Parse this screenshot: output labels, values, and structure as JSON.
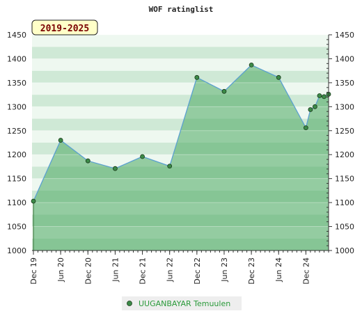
{
  "chart_data": {
    "type": "area",
    "title": "WOF ratinglist",
    "period_badge": "2019-2025",
    "ylim": [
      1000,
      1450
    ],
    "y_ticks": [
      1000,
      1050,
      1100,
      1150,
      1200,
      1250,
      1300,
      1350,
      1400,
      1450
    ],
    "x_range": [
      "2019-12",
      "2025-05"
    ],
    "x_ticks": [
      {
        "date": "2019-12",
        "label": "Dec 19"
      },
      {
        "date": "2020-06",
        "label": "Jun 20"
      },
      {
        "date": "2020-12",
        "label": "Dec 20"
      },
      {
        "date": "2021-06",
        "label": "Jun 21"
      },
      {
        "date": "2021-12",
        "label": "Dec 21"
      },
      {
        "date": "2022-06",
        "label": "Jun 22"
      },
      {
        "date": "2022-12",
        "label": "Dec 22"
      },
      {
        "date": "2023-06",
        "label": "Jun 23"
      },
      {
        "date": "2023-12",
        "label": "Dec 23"
      },
      {
        "date": "2024-06",
        "label": "Jun 24"
      },
      {
        "date": "2024-12",
        "label": "Dec 24"
      }
    ],
    "series": [
      {
        "name": "UUGANBAYAR Temuulen",
        "color": "#4a9a4a",
        "points": [
          {
            "x": "2019-12",
            "y": 1103
          },
          {
            "x": "2020-06",
            "y": 1230
          },
          {
            "x": "2020-12",
            "y": 1187
          },
          {
            "x": "2021-06",
            "y": 1171
          },
          {
            "x": "2021-12",
            "y": 1196
          },
          {
            "x": "2022-06",
            "y": 1176
          },
          {
            "x": "2022-12",
            "y": 1361
          },
          {
            "x": "2023-06",
            "y": 1332
          },
          {
            "x": "2023-12",
            "y": 1387
          },
          {
            "x": "2024-06",
            "y": 1361
          },
          {
            "x": "2024-12",
            "y": 1256
          },
          {
            "x": "2025-01",
            "y": 1294
          },
          {
            "x": "2025-02",
            "y": 1300
          },
          {
            "x": "2025-03",
            "y": 1323
          },
          {
            "x": "2025-04",
            "y": 1321
          },
          {
            "x": "2025-05",
            "y": 1326
          }
        ]
      }
    ],
    "grid": true,
    "legend": "bottom-center",
    "colors": {
      "band_dark": "#cfe9d6",
      "band_light": "#eef8f0",
      "area_fill": "#4aa860",
      "line": "#5ba0d0",
      "marker": "#3c8a48",
      "badge_bg": "#ffffc8"
    }
  }
}
